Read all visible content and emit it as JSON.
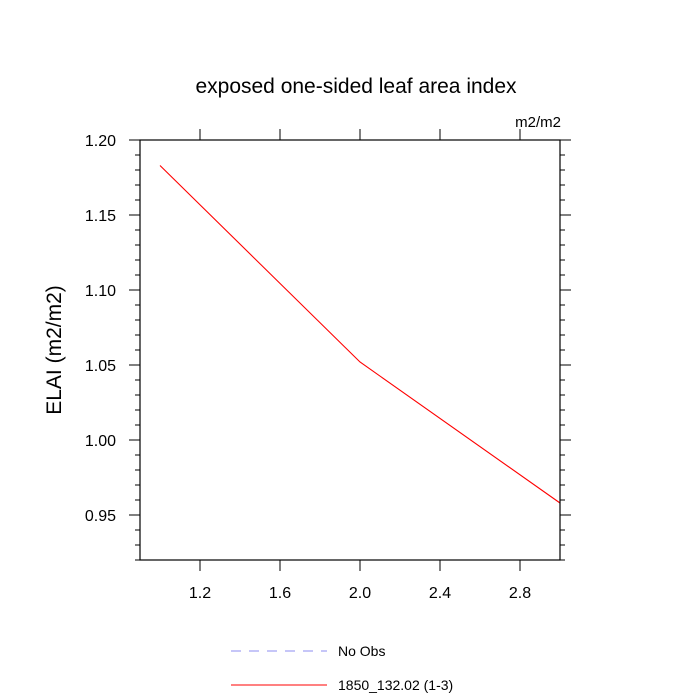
{
  "chart_data": {
    "type": "line",
    "title": "exposed one-sided leaf area index",
    "units": "m2/m2",
    "ylabel": "ELAI  (m2/m2)",
    "xlabel": "",
    "xlim": [
      0.9,
      3.0
    ],
    "ylim": [
      0.92,
      1.2
    ],
    "x_ticks": [
      1.2,
      1.6,
      2.0,
      2.4,
      2.8
    ],
    "x_tick_labels": [
      "1.2",
      "1.6",
      "2.0",
      "2.4",
      "2.8"
    ],
    "y_ticks": [
      0.95,
      1.0,
      1.05,
      1.1,
      1.15,
      1.2
    ],
    "y_tick_labels": [
      "0.95",
      "1.00",
      "1.05",
      "1.10",
      "1.15",
      "1.20"
    ],
    "grid": false,
    "legend_position": "bottom",
    "series": [
      {
        "name": "No Obs",
        "color": "#8c8cf0",
        "style": "dashed",
        "x": [],
        "y": []
      },
      {
        "name": "1850_132.02 (1-3)",
        "color": "#ff0000",
        "style": "solid",
        "x": [
          1.0,
          2.0,
          3.0
        ],
        "y": [
          1.183,
          1.052,
          0.958
        ]
      }
    ]
  }
}
